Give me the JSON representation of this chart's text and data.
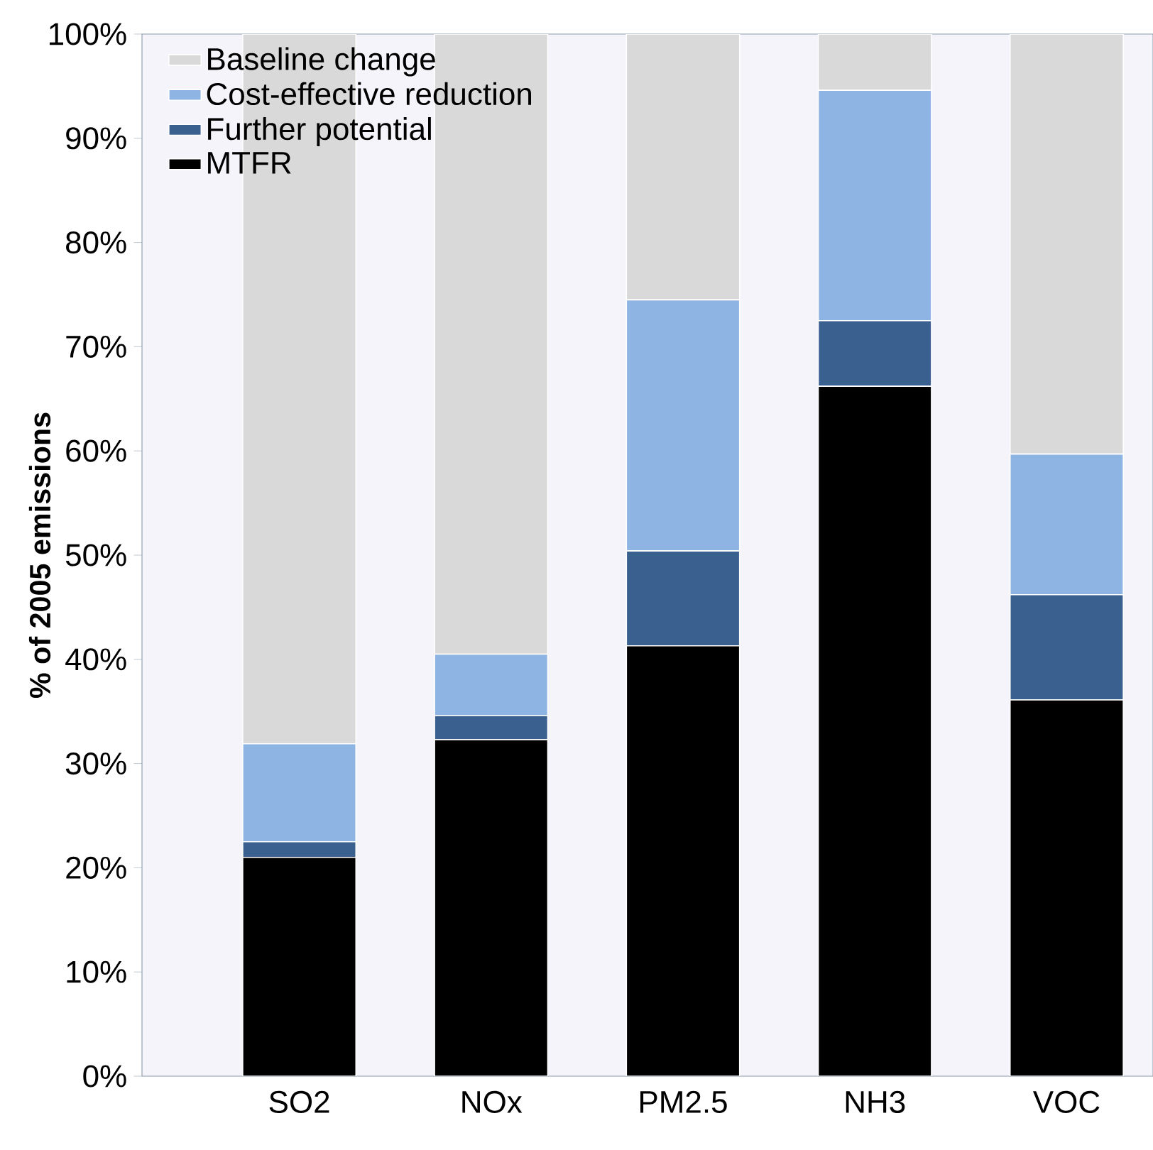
{
  "chart_data": {
    "type": "bar",
    "stacked": true,
    "ylabel": "% of 2005 emissions",
    "categories": [
      "SO2",
      "NOx",
      "PM2.5",
      "NH3",
      "VOC"
    ],
    "series": [
      {
        "name": "MTFR",
        "color": "#000000",
        "values": [
          21.0,
          32.3,
          41.3,
          66.2,
          36.1
        ]
      },
      {
        "name": "Further potential",
        "color": "#3a6090",
        "values": [
          1.5,
          2.3,
          9.1,
          6.3,
          10.1
        ]
      },
      {
        "name": "Cost-effective reduction",
        "color": "#8eb4e3",
        "values": [
          9.4,
          5.9,
          24.1,
          22.1,
          13.5
        ]
      },
      {
        "name": "Baseline change",
        "color": "#d9d9d9",
        "values": [
          68.1,
          59.5,
          25.5,
          5.4,
          40.3
        ]
      }
    ],
    "ylim": [
      0,
      100
    ],
    "yticks": [
      {
        "value": 0,
        "label": "0%"
      },
      {
        "value": 10,
        "label": "10%"
      },
      {
        "value": 20,
        "label": "20%"
      },
      {
        "value": 30,
        "label": "30%"
      },
      {
        "value": 40,
        "label": "40%"
      },
      {
        "value": 50,
        "label": "50%"
      },
      {
        "value": 60,
        "label": "60%"
      },
      {
        "value": 70,
        "label": "70%"
      },
      {
        "value": 80,
        "label": "80%"
      },
      {
        "value": 90,
        "label": "90%"
      },
      {
        "value": 100,
        "label": "100%"
      }
    ],
    "legend": "top left"
  }
}
